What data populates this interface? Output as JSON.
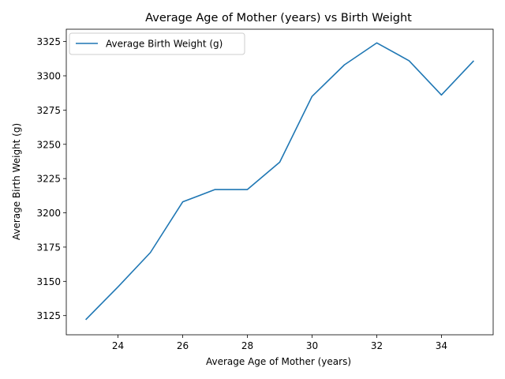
{
  "chart_data": {
    "type": "line",
    "title": "Average Age of Mother (years) vs Birth Weight",
    "xlabel": "Average Age of Mother (years)",
    "ylabel": "Average Birth Weight (g)",
    "xlim": [
      22.4,
      35.6
    ],
    "ylim": [
      3111,
      3334
    ],
    "xticks": [
      24,
      26,
      28,
      30,
      32,
      34
    ],
    "yticks": [
      3125,
      3150,
      3175,
      3200,
      3225,
      3250,
      3275,
      3300,
      3325
    ],
    "grid": false,
    "legend_position": "top-left",
    "series": [
      {
        "name": "Average Birth Weight (g)",
        "color": "#1f77b4",
        "x": [
          23,
          24,
          25,
          26,
          27,
          28,
          29,
          30,
          31,
          32,
          33,
          34,
          35
        ],
        "y": [
          3122,
          3146,
          3171,
          3208,
          3217,
          3217,
          3237,
          3285,
          3308,
          3324,
          3311,
          3286,
          3311
        ]
      }
    ]
  }
}
